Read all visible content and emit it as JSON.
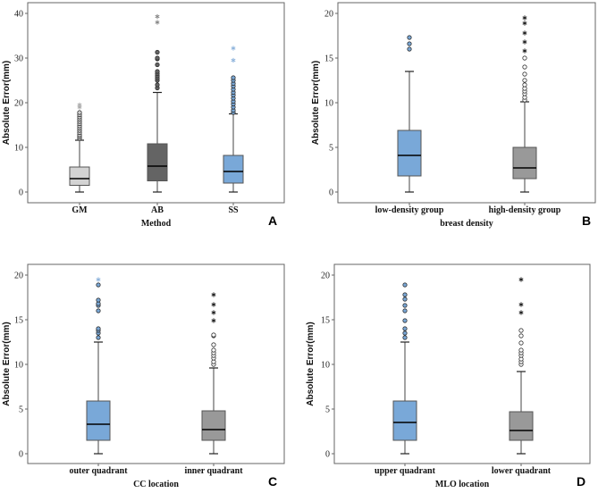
{
  "chart_data": [
    {
      "type": "boxplot",
      "panel_label": "A",
      "xlabel": "Method",
      "ylabel": "Absolute Error(mm)",
      "ylim": [
        0,
        40
      ],
      "yticks": [
        0,
        10,
        20,
        30,
        40
      ],
      "categories": [
        "GM",
        "AB",
        "SS"
      ],
      "boxes": [
        {
          "min": 0,
          "q1": 1.5,
          "median": 3.0,
          "q3": 5.6,
          "max": 11.6,
          "outliers": [
            12,
            12.4,
            12.8,
            13.3,
            13.8,
            14.3,
            14.8,
            15.3,
            15.8,
            16.3,
            16.8,
            17.3,
            17.8
          ],
          "extremes": [
            19,
            19.5
          ],
          "color": "#d3d3d3"
        },
        {
          "min": 0,
          "q1": 2.5,
          "median": 5.8,
          "q3": 10.8,
          "max": 22.3,
          "outliers": [
            23.3,
            24,
            25,
            25.5,
            26,
            26.5,
            27,
            28.5,
            29.8,
            30,
            31.3
          ],
          "extremes": [
            38,
            39.3
          ],
          "color": "#646464"
        },
        {
          "min": 0,
          "q1": 2.0,
          "median": 4.6,
          "q3": 8.2,
          "max": 17.5,
          "outliers": [
            17.8,
            18.3,
            19,
            19.7,
            20.3,
            21,
            21.7,
            22.3,
            23,
            23.7,
            24.3,
            25,
            25.6
          ],
          "extremes": [
            29.5,
            32.2
          ],
          "color": "#79a8d8"
        }
      ]
    },
    {
      "type": "boxplot",
      "panel_label": "B",
      "xlabel": "breast density",
      "ylabel": "Absolute Error(mm)",
      "ylim": [
        0,
        20
      ],
      "yticks": [
        0,
        5,
        10,
        15,
        20
      ],
      "categories": [
        "low-density group",
        "high-density group"
      ],
      "boxes": [
        {
          "min": 0,
          "q1": 1.8,
          "median": 4.1,
          "q3": 6.9,
          "max": 13.5,
          "outliers": [
            16,
            16.6,
            17.3
          ],
          "extremes": [],
          "color": "#79a8d8"
        },
        {
          "min": 0,
          "q1": 1.5,
          "median": 2.7,
          "q3": 5.0,
          "max": 10.1,
          "outliers": [
            10.3,
            10.6,
            11,
            11.3,
            11.6,
            12,
            12.5,
            13.2,
            14,
            15
          ],
          "extremes": [
            15.8,
            16.8,
            17.8,
            18.9,
            19.5
          ],
          "color": "#999999"
        }
      ]
    },
    {
      "type": "boxplot",
      "panel_label": "C",
      "xlabel": "CC location",
      "ylabel": "Absolute Error(mm)",
      "ylim": [
        0,
        20
      ],
      "yticks": [
        0,
        5,
        10,
        15,
        20
      ],
      "categories": [
        "outer quadrant",
        "inner quadrant"
      ],
      "boxes": [
        {
          "min": 0,
          "q1": 1.5,
          "median": 3.3,
          "q3": 5.9,
          "max": 12.5,
          "outliers": [
            13,
            13.5,
            13.8,
            14,
            16,
            16.6,
            16.8,
            17.2,
            18.9
          ],
          "extremes": [
            19.5
          ],
          "color": "#79a8d8"
        },
        {
          "min": 0,
          "q1": 1.5,
          "median": 2.7,
          "q3": 4.8,
          "max": 9.6,
          "outliers": [
            10,
            10.3,
            10.7,
            11,
            11.3,
            11.6,
            12.2,
            13.2,
            13.3
          ],
          "extremes": [
            14.9,
            15.8,
            16.7,
            17.8
          ],
          "color": "#999999"
        }
      ]
    },
    {
      "type": "boxplot",
      "panel_label": "D",
      "xlabel": "MLO location",
      "ylabel": "Absolute Error(mm)",
      "ylim": [
        0,
        20
      ],
      "yticks": [
        0,
        5,
        10,
        15,
        20
      ],
      "categories": [
        "upper quadrant",
        "lower quadrant"
      ],
      "boxes": [
        {
          "min": 0,
          "q1": 1.5,
          "median": 3.5,
          "q3": 5.9,
          "max": 12.5,
          "outliers": [
            13,
            13.5,
            14,
            14.9,
            16,
            16.6,
            17.3,
            17.8,
            18.9
          ],
          "extremes": [],
          "color": "#79a8d8"
        },
        {
          "min": 0,
          "q1": 1.5,
          "median": 2.6,
          "q3": 4.7,
          "max": 9.2,
          "outliers": [
            10,
            10.3,
            10.6,
            11,
            11.3,
            11.6,
            12.4,
            13.2,
            13.8
          ],
          "extremes": [
            15.8,
            16.7,
            19.5
          ],
          "color": "#999999"
        }
      ]
    }
  ]
}
